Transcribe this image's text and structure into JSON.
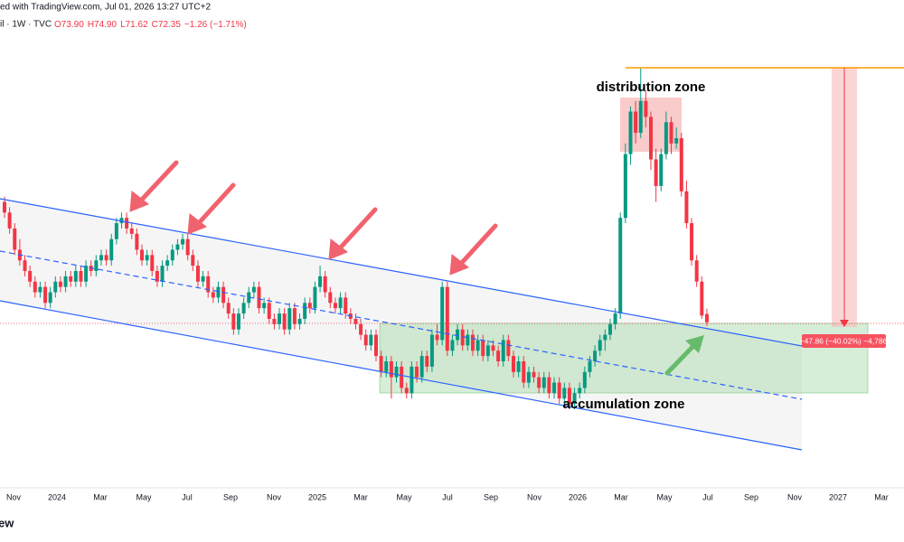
{
  "header": {
    "published": "ed with TradingView.com, Jul 01, 2026 13:27 UTC+2",
    "symbol": "il · 1W · TVC",
    "ohlc_text": [
      "O73.90",
      "H74.90",
      "L71.62",
      "C72.35"
    ],
    "change": "−1.26 (−1.71%)"
  },
  "annotations": {
    "distribution": "distribution zone",
    "accumulation": "accumulation zone",
    "measure": "−47.86 (−40.02%) −4,786"
  },
  "logo": "ew",
  "chart_data": {
    "type": "candlestick",
    "up_color": "#089981",
    "down_color": "#f23645",
    "ylim": [
      41.2,
      133
    ],
    "xticks": [
      "Nov",
      "2024",
      "Mar",
      "May",
      "Jul",
      "Sep",
      "Nov",
      "2025",
      "Mar",
      "May",
      "Jul",
      "Sep",
      "Nov",
      "2026",
      "Mar",
      "May",
      "Jul",
      "Sep",
      "Nov",
      "2027",
      "Mar"
    ],
    "ohlc": [
      [
        95,
        96,
        92,
        93
      ],
      [
        93,
        94,
        89,
        90
      ],
      [
        90,
        91,
        85,
        86
      ],
      [
        86,
        88,
        83,
        84
      ],
      [
        84,
        85,
        81,
        82
      ],
      [
        82,
        83,
        79,
        80
      ],
      [
        80,
        81,
        77,
        78
      ],
      [
        78,
        80,
        77,
        79
      ],
      [
        79,
        80,
        75,
        76
      ],
      [
        76,
        79,
        75,
        78
      ],
      [
        78,
        81,
        77,
        80
      ],
      [
        80,
        81,
        78,
        79
      ],
      [
        79,
        82,
        78,
        81
      ],
      [
        81,
        82,
        79,
        80
      ],
      [
        80,
        83,
        79,
        82
      ],
      [
        82,
        83,
        79,
        80
      ],
      [
        80,
        84,
        79,
        83
      ],
      [
        83,
        84,
        81,
        82
      ],
      [
        82,
        85,
        81,
        84
      ],
      [
        84,
        86,
        83,
        85
      ],
      [
        85,
        86,
        83,
        84
      ],
      [
        84,
        89,
        83,
        88
      ],
      [
        88,
        92,
        87,
        91
      ],
      [
        91,
        93,
        90,
        92
      ],
      [
        92,
        93,
        89,
        90
      ],
      [
        90,
        91,
        88,
        89
      ],
      [
        89,
        90,
        85,
        86
      ],
      [
        86,
        87,
        83,
        84
      ],
      [
        84,
        86,
        83,
        85
      ],
      [
        85,
        86,
        81,
        82
      ],
      [
        82,
        83,
        79,
        80
      ],
      [
        80,
        84,
        79,
        83
      ],
      [
        83,
        85,
        82,
        84
      ],
      [
        84,
        87,
        83,
        86
      ],
      [
        86,
        88,
        85,
        87
      ],
      [
        87,
        89,
        86,
        88
      ],
      [
        88,
        89,
        84,
        85
      ],
      [
        85,
        86,
        82,
        83
      ],
      [
        83,
        84,
        79,
        80
      ],
      [
        80,
        82,
        79,
        81
      ],
      [
        81,
        82,
        77,
        78
      ],
      [
        78,
        79,
        76,
        77
      ],
      [
        77,
        80,
        76,
        79
      ],
      [
        79,
        80,
        75,
        76
      ],
      [
        76,
        77,
        73,
        74
      ],
      [
        74,
        75,
        70,
        71
      ],
      [
        71,
        75,
        70,
        74
      ],
      [
        74,
        77,
        73,
        76
      ],
      [
        76,
        79,
        75,
        78
      ],
      [
        78,
        80,
        77,
        79
      ],
      [
        79,
        80,
        74,
        75
      ],
      [
        75,
        77,
        74,
        76
      ],
      [
        76,
        77,
        72,
        73
      ],
      [
        73,
        74,
        71,
        72
      ],
      [
        72,
        75,
        71,
        74
      ],
      [
        74,
        75,
        70,
        71
      ],
      [
        71,
        76,
        70,
        75
      ],
      [
        75,
        76,
        71,
        72
      ],
      [
        72,
        74,
        71,
        73
      ],
      [
        73,
        77,
        72,
        76
      ],
      [
        76,
        77,
        74,
        75
      ],
      [
        75,
        80,
        74,
        79
      ],
      [
        79,
        83,
        78,
        81
      ],
      [
        81,
        82,
        77,
        78
      ],
      [
        78,
        79,
        75,
        76
      ],
      [
        76,
        77,
        74,
        75
      ],
      [
        75,
        78,
        74,
        77
      ],
      [
        77,
        78,
        73,
        74
      ],
      [
        74,
        75,
        72,
        73
      ],
      [
        73,
        74,
        71,
        72
      ],
      [
        72,
        73,
        69,
        70
      ],
      [
        70,
        71,
        67,
        68
      ],
      [
        68,
        71,
        67,
        70
      ],
      [
        70,
        71,
        65,
        66
      ],
      [
        66,
        67,
        62,
        63
      ],
      [
        63,
        66,
        62,
        65
      ],
      [
        65,
        66,
        58,
        62
      ],
      [
        62,
        65,
        61,
        64
      ],
      [
        64,
        65,
        59,
        60
      ],
      [
        60,
        61,
        58,
        59
      ],
      [
        59,
        65,
        58,
        64
      ],
      [
        64,
        65,
        61,
        62
      ],
      [
        62,
        67,
        61,
        66
      ],
      [
        66,
        67,
        63,
        64
      ],
      [
        64,
        71,
        63,
        70
      ],
      [
        70,
        72,
        68,
        69
      ],
      [
        69,
        80,
        68,
        79
      ],
      [
        79,
        80,
        66,
        67
      ],
      [
        67,
        70,
        66,
        69
      ],
      [
        69,
        72,
        68,
        71
      ],
      [
        71,
        72,
        67,
        68
      ],
      [
        68,
        71,
        67,
        70
      ],
      [
        70,
        71,
        66,
        67
      ],
      [
        67,
        70,
        66,
        69
      ],
      [
        69,
        70,
        65,
        66
      ],
      [
        66,
        69,
        65,
        68
      ],
      [
        68,
        69,
        66,
        67
      ],
      [
        67,
        68,
        64,
        65
      ],
      [
        65,
        70,
        64,
        69
      ],
      [
        69,
        70,
        65,
        66
      ],
      [
        66,
        67,
        62,
        63
      ],
      [
        63,
        66,
        62,
        65
      ],
      [
        65,
        66,
        60,
        61
      ],
      [
        61,
        64,
        60,
        63
      ],
      [
        63,
        64,
        61,
        62
      ],
      [
        62,
        63,
        59,
        60
      ],
      [
        60,
        63,
        59,
        62
      ],
      [
        62,
        63,
        58,
        59
      ],
      [
        59,
        62,
        58,
        61
      ],
      [
        61,
        62,
        57,
        58
      ],
      [
        58,
        61,
        57,
        60
      ],
      [
        60,
        61,
        56,
        57
      ],
      [
        57,
        60,
        56,
        59
      ],
      [
        59,
        61,
        58,
        60
      ],
      [
        60,
        64,
        59,
        63
      ],
      [
        63,
        66,
        62,
        65
      ],
      [
        65,
        68,
        64,
        67
      ],
      [
        67,
        70,
        66,
        69
      ],
      [
        69,
        71,
        67,
        70
      ],
      [
        70,
        73,
        69,
        72
      ],
      [
        72,
        75,
        71,
        74
      ],
      [
        74,
        93,
        73,
        92
      ],
      [
        92,
        106,
        91,
        104
      ],
      [
        104,
        113,
        102,
        112
      ],
      [
        112,
        114,
        106,
        108
      ],
      [
        108,
        120.2,
        107,
        114
      ],
      [
        114,
        116,
        109,
        111
      ],
      [
        111,
        112,
        101,
        103
      ],
      [
        103,
        105,
        95,
        98
      ],
      [
        98,
        105,
        97,
        104
      ],
      [
        104,
        112,
        103,
        110
      ],
      [
        110,
        111,
        104,
        106
      ],
      [
        106,
        109,
        105,
        107
      ],
      [
        107,
        108,
        96,
        97
      ],
      [
        97,
        99,
        90,
        91
      ],
      [
        91,
        92,
        83,
        84
      ],
      [
        84,
        85,
        79,
        80
      ],
      [
        80,
        81,
        73,
        73.61
      ],
      [
        73.9,
        74.9,
        71.62,
        72.35
      ]
    ]
  }
}
